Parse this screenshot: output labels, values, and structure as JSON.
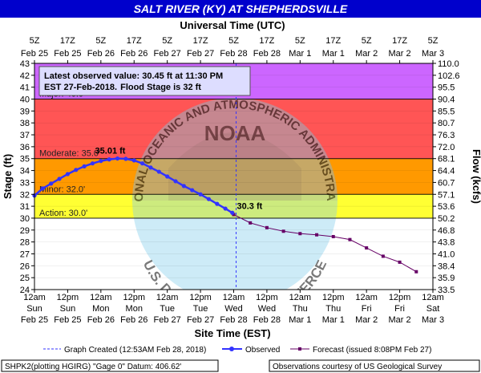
{
  "title": "SALT RIVER (KY) AT SHEPHERDSVILLE",
  "top_axis_title": "Universal Time (UTC)",
  "bottom_axis_title": "Site Time (EST)",
  "left_axis_title": "Stage (ft)",
  "right_axis_title": "Flow (kcfs)",
  "top_ticks": [
    {
      "line1": "5Z",
      "line2": "Feb 25"
    },
    {
      "line1": "17Z",
      "line2": "Feb 25"
    },
    {
      "line1": "5Z",
      "line2": "Feb 26"
    },
    {
      "line1": "17Z",
      "line2": "Feb 26"
    },
    {
      "line1": "5Z",
      "line2": "Feb 27"
    },
    {
      "line1": "17Z",
      "line2": "Feb 27"
    },
    {
      "line1": "5Z",
      "line2": "Feb 28"
    },
    {
      "line1": "17Z",
      "line2": "Feb 28"
    },
    {
      "line1": "5Z",
      "line2": "Mar 1"
    },
    {
      "line1": "17Z",
      "line2": "Mar 1"
    },
    {
      "line1": "5Z",
      "line2": "Mar 2"
    },
    {
      "line1": "17Z",
      "line2": "Mar 2"
    },
    {
      "line1": "5Z",
      "line2": "Mar 3"
    }
  ],
  "bottom_ticks": [
    {
      "line1": "12am",
      "line2": "Sun",
      "line3": "Feb 25"
    },
    {
      "line1": "12pm",
      "line2": "Sun",
      "line3": "Feb 25"
    },
    {
      "line1": "12am",
      "line2": "Mon",
      "line3": "Feb 26"
    },
    {
      "line1": "12pm",
      "line2": "Mon",
      "line3": "Feb 26"
    },
    {
      "line1": "12am",
      "line2": "Tue",
      "line3": "Feb 27"
    },
    {
      "line1": "12pm",
      "line2": "Tue",
      "line3": "Feb 27"
    },
    {
      "line1": "12am",
      "line2": "Wed",
      "line3": "Feb 28"
    },
    {
      "line1": "12pm",
      "line2": "Wed",
      "line3": "Feb 28"
    },
    {
      "line1": "12am",
      "line2": "Thu",
      "line3": "Mar 1"
    },
    {
      "line1": "12pm",
      "line2": "Thu",
      "line3": "Mar 1"
    },
    {
      "line1": "12am",
      "line2": "Fri",
      "line3": "Mar 2"
    },
    {
      "line1": "12pm",
      "line2": "Fri",
      "line3": "Mar 2"
    },
    {
      "line1": "12am",
      "line2": "Sat",
      "line3": "Mar 3"
    }
  ],
  "latest_box": {
    "line1": "Latest observed value: 30.45 ft at 11:30 PM",
    "line2a": "EST 27-Feb-2018.",
    "line2b": "Flood Stage is 32 ft"
  },
  "peak_label": "35.01 ft",
  "current_label": "30.3 ft",
  "legend": {
    "created": "Graph Created (12:53AM Feb 28, 2018)",
    "observed": "Observed",
    "forecast": "Forecast (issued 8:08PM Feb 27)"
  },
  "footer": {
    "left": "SHPK2(plotting HGIRG) \"Gage 0\" Datum: 406.62'",
    "right": "Observations courtesy of US Geological Survey"
  },
  "watermark": {
    "upper": "NATIONAL OCEANIC AND ATMOSPHERIC ADMINISTRATION",
    "lower": "U.S. DEPARTMENT OF COMMERCE",
    "center": "NOAA"
  },
  "colors": {
    "title_bar": "#0000cc",
    "major": "#cc66ff",
    "moderate": "#ff5555",
    "minor": "#ff9900",
    "action": "#ffff33",
    "normal": "#ffffff",
    "observed": "#3333ff",
    "forecast": "#660066"
  },
  "chart_data": {
    "type": "line",
    "y_range": [
      24,
      43
    ],
    "y_ticks": [
      24,
      25,
      26,
      27,
      28,
      29,
      30,
      31,
      32,
      33,
      34,
      35,
      36,
      37,
      38,
      39,
      40,
      41,
      42,
      43
    ],
    "right_range": [
      33.5,
      110.0
    ],
    "right_ticks": [
      {
        "stage": 24.0,
        "label": "33.5"
      },
      {
        "stage": 25.0,
        "label": "35.9"
      },
      {
        "stage": 26.0,
        "label": "38.4"
      },
      {
        "stage": 27.0,
        "label": "41.0"
      },
      {
        "stage": 28.0,
        "label": "43.8"
      },
      {
        "stage": 29.0,
        "label": "46.8"
      },
      {
        "stage": 30.0,
        "label": "50.2"
      },
      {
        "stage": 31.0,
        "label": "53.6"
      },
      {
        "stage": 32.0,
        "label": "57.1"
      },
      {
        "stage": 33.0,
        "label": "60.7"
      },
      {
        "stage": 34.0,
        "label": "64.4"
      },
      {
        "stage": 35.0,
        "label": "68.1"
      },
      {
        "stage": 36.0,
        "label": "72.0"
      },
      {
        "stage": 37.0,
        "label": "76.3"
      },
      {
        "stage": 38.0,
        "label": "80.7"
      },
      {
        "stage": 39.0,
        "label": "85.5"
      },
      {
        "stage": 40.0,
        "label": "90.4"
      },
      {
        "stage": 41.0,
        "label": "95.5"
      },
      {
        "stage": 42.0,
        "label": "102.6"
      },
      {
        "stage": 43.0,
        "label": "110.0"
      }
    ],
    "x_range": [
      "2018-02-25T00:00",
      "2018-03-03T00:00"
    ],
    "flood_categories": [
      {
        "name": "Major",
        "label": "Major: 40.0'",
        "stage": 40.0
      },
      {
        "name": "Moderate",
        "label": "Moderate: 35.0'",
        "stage": 35.0
      },
      {
        "name": "Minor",
        "label": "Minor: 32.0'",
        "stage": 32.0
      },
      {
        "name": "Action",
        "label": "Action: 30.0'",
        "stage": 30.0
      }
    ],
    "graph_created": "2018-02-28T00:53",
    "series": [
      {
        "name": "Observed",
        "points": [
          {
            "t": "2018-02-25T00:00",
            "v": 31.9
          },
          {
            "t": "2018-02-25T03:00",
            "v": 32.5
          },
          {
            "t": "2018-02-25T06:00",
            "v": 32.9
          },
          {
            "t": "2018-02-25T09:00",
            "v": 33.3
          },
          {
            "t": "2018-02-25T12:00",
            "v": 33.7
          },
          {
            "t": "2018-02-25T15:00",
            "v": 34.05
          },
          {
            "t": "2018-02-25T18:00",
            "v": 34.35
          },
          {
            "t": "2018-02-25T21:00",
            "v": 34.6
          },
          {
            "t": "2018-02-26T00:00",
            "v": 34.8
          },
          {
            "t": "2018-02-26T03:00",
            "v": 34.93
          },
          {
            "t": "2018-02-26T06:00",
            "v": 35.01
          },
          {
            "t": "2018-02-26T09:00",
            "v": 34.98
          },
          {
            "t": "2018-02-26T12:00",
            "v": 34.85
          },
          {
            "t": "2018-02-26T15:00",
            "v": 34.6
          },
          {
            "t": "2018-02-26T18:00",
            "v": 34.25
          },
          {
            "t": "2018-02-26T21:00",
            "v": 33.9
          },
          {
            "t": "2018-02-27T00:00",
            "v": 33.5
          },
          {
            "t": "2018-02-27T03:00",
            "v": 33.1
          },
          {
            "t": "2018-02-27T06:00",
            "v": 32.7
          },
          {
            "t": "2018-02-27T09:00",
            "v": 32.35
          },
          {
            "t": "2018-02-27T12:00",
            "v": 32.0
          },
          {
            "t": "2018-02-27T15:00",
            "v": 31.6
          },
          {
            "t": "2018-02-27T18:00",
            "v": 31.2
          },
          {
            "t": "2018-02-27T21:00",
            "v": 30.8
          },
          {
            "t": "2018-02-27T23:30",
            "v": 30.45
          }
        ]
      },
      {
        "name": "Forecast",
        "points": [
          {
            "t": "2018-02-28T00:00",
            "v": 30.3
          },
          {
            "t": "2018-02-28T06:00",
            "v": 29.6
          },
          {
            "t": "2018-02-28T12:00",
            "v": 29.2
          },
          {
            "t": "2018-02-28T18:00",
            "v": 28.9
          },
          {
            "t": "2018-03-01T00:00",
            "v": 28.7
          },
          {
            "t": "2018-03-01T06:00",
            "v": 28.6
          },
          {
            "t": "2018-03-01T12:00",
            "v": 28.45
          },
          {
            "t": "2018-03-01T18:00",
            "v": 28.2
          },
          {
            "t": "2018-03-02T00:00",
            "v": 27.5
          },
          {
            "t": "2018-03-02T06:00",
            "v": 26.8
          },
          {
            "t": "2018-03-02T12:00",
            "v": 26.3
          },
          {
            "t": "2018-03-02T18:00",
            "v": 25.5
          }
        ]
      }
    ]
  }
}
